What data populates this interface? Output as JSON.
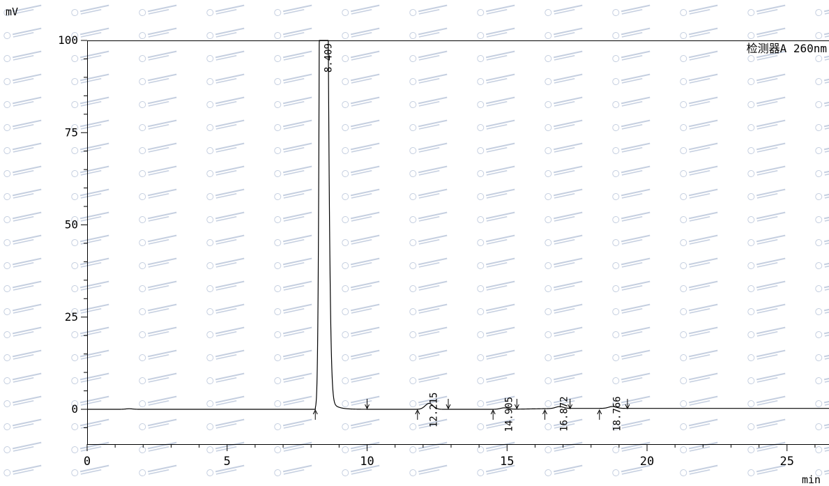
{
  "chart_data": {
    "type": "line",
    "detector_label": "检测器A 260nm",
    "ylabel": "mV",
    "xlabel": "min",
    "xlim": [
      0,
      26.5
    ],
    "ylim": [
      -9.5,
      100
    ],
    "x_ticks": [
      0,
      5,
      10,
      15,
      20,
      25
    ],
    "y_ticks": [
      0,
      25,
      50,
      75,
      100
    ],
    "peaks": [
      {
        "rt": 8.409,
        "label": "8.409",
        "height": 420,
        "start": 8.15,
        "end": 10.0
      },
      {
        "rt": 12.215,
        "label": "12.215",
        "height": 1.6,
        "start": 11.8,
        "end": 12.9
      },
      {
        "rt": 14.905,
        "label": "14.905",
        "height": 0.4,
        "start": 14.5,
        "end": 15.35
      },
      {
        "rt": 16.872,
        "label": "16.872",
        "height": 0.5,
        "start": 16.35,
        "end": 17.25
      },
      {
        "rt": 18.766,
        "label": "18.766",
        "height": 0.5,
        "start": 18.3,
        "end": 19.3
      }
    ]
  }
}
